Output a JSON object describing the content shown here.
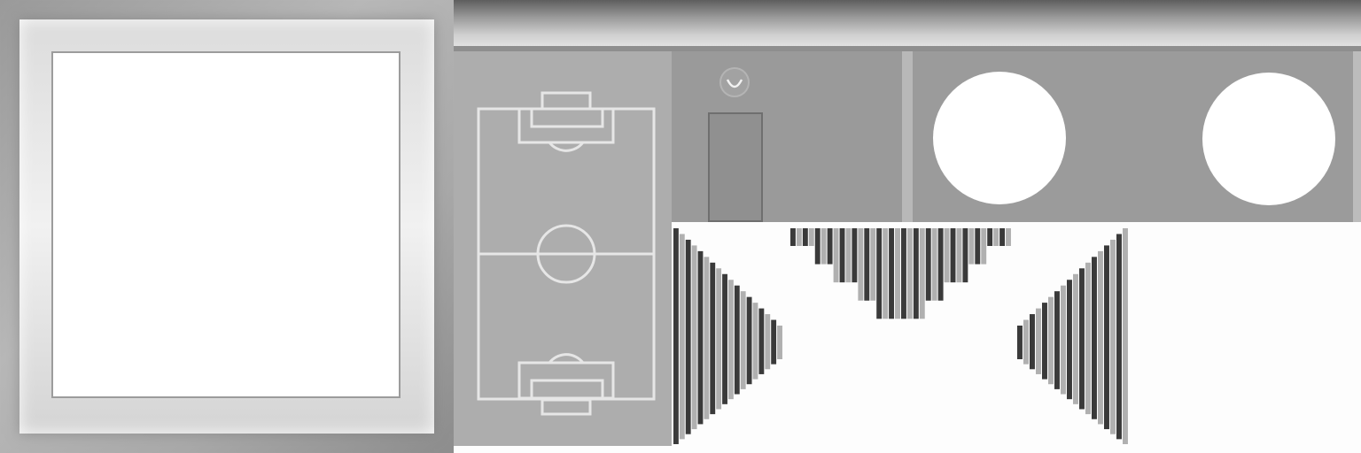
{
  "texture": {
    "colors": {
      "background": "#fdfdfd",
      "frame_gray": "#a9a9a9",
      "panel_gray": "#9a9a9a",
      "pitch_gray": "#adadad",
      "line_white": "#e8e8e8",
      "stripe_dark": "#3a3a3a",
      "stripe_light": "#b0b0b0"
    },
    "icons": {
      "knob": "tilde-symbol-icon"
    }
  }
}
